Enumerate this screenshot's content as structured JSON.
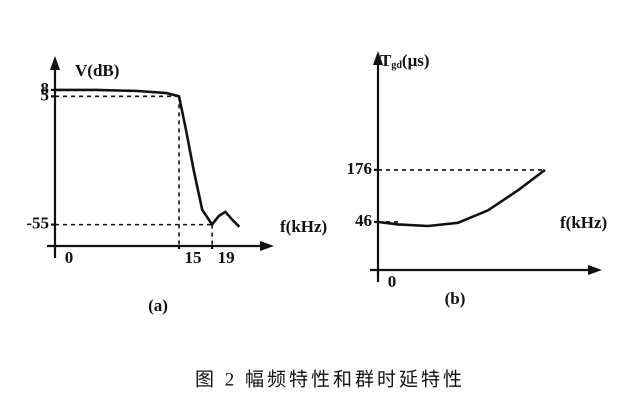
{
  "chart_data": [
    {
      "type": "line",
      "y_label": "V(dB)",
      "x_label": "f(kHz)",
      "caption": "(a)",
      "x": [
        0,
        5,
        10,
        13.5,
        15,
        15.8,
        16.8,
        17.8,
        19,
        19.8,
        20.6,
        21.5,
        22.3
      ],
      "values": [
        8,
        8,
        7.5,
        6.5,
        5,
        -10,
        -30,
        -48,
        -55,
        -51,
        -49,
        -53,
        -56
      ],
      "color": "#111111",
      "xlim": [
        0,
        26
      ],
      "ylim": [
        -65,
        22
      ],
      "xticks": [
        0,
        15,
        19
      ],
      "yticks": [
        8,
        5,
        -55
      ]
    },
    {
      "type": "line",
      "y_label": "T",
      "y_label_sub": "gd",
      "y_label_unit": "(μs)",
      "x_label": "f(kHz)",
      "caption": "(b)",
      "x": [
        0,
        2,
        5,
        8,
        11,
        14,
        16.7
      ],
      "values": [
        46,
        40,
        36,
        44,
        75,
        125,
        176
      ],
      "color": "#111111",
      "xlim": [
        0,
        22
      ],
      "ylim": [
        -74,
        463
      ],
      "xticks": [
        0
      ],
      "yticks": [
        176,
        46
      ]
    }
  ],
  "figure_caption": "图 2   幅频特性和群时延特性"
}
